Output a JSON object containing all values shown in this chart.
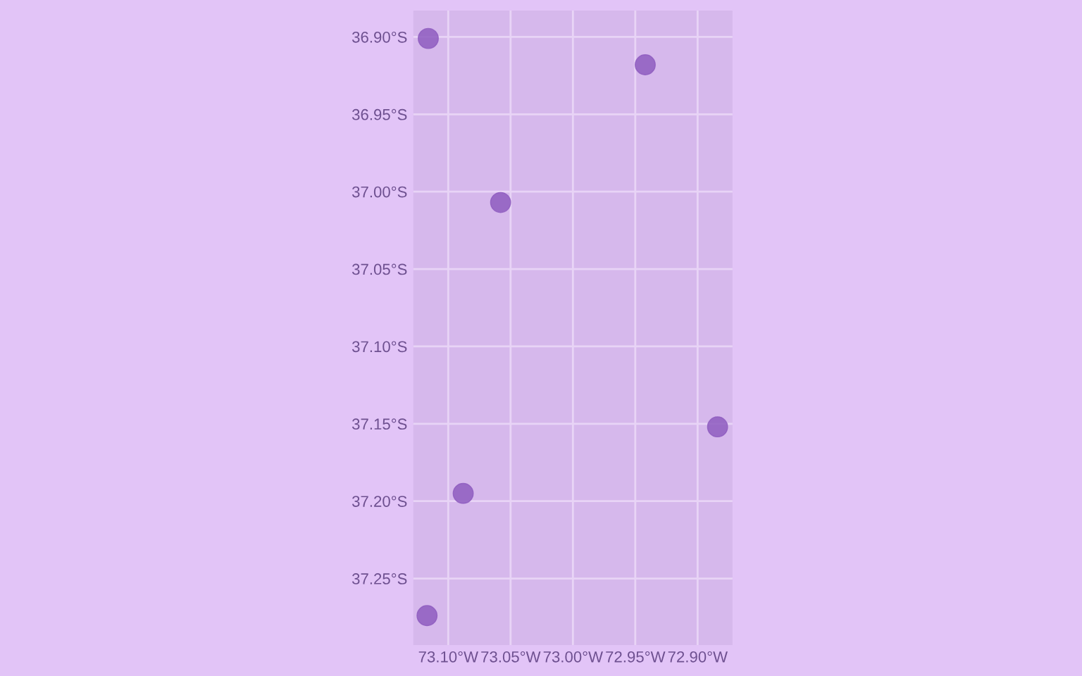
{
  "chart_data": {
    "type": "scatter",
    "x": [
      -73.116,
      -72.942,
      -73.058,
      -72.884,
      -73.088,
      -73.117
    ],
    "values": [
      -36.901,
      -36.918,
      -37.007,
      -37.152,
      -37.195,
      -37.274
    ],
    "color": "#8e5cc0",
    "marker": "circle",
    "grid": true,
    "xlim": [
      -73.128,
      -72.872
    ],
    "ylim": [
      -37.293,
      -36.883
    ],
    "xticks": [
      {
        "value": -73.1,
        "label": "73.10°W"
      },
      {
        "value": -73.05,
        "label": "73.05°W"
      },
      {
        "value": -73.0,
        "label": "73.00°W"
      },
      {
        "value": -72.95,
        "label": "72.95°W"
      },
      {
        "value": -72.9,
        "label": "72.90°W"
      }
    ],
    "yticks": [
      {
        "value": -36.9,
        "label": "36.90°S"
      },
      {
        "value": -36.95,
        "label": "36.95°S"
      },
      {
        "value": -37.0,
        "label": "37.00°S"
      },
      {
        "value": -37.05,
        "label": "37.05°S"
      },
      {
        "value": -37.1,
        "label": "37.10°S"
      },
      {
        "value": -37.15,
        "label": "37.15°S"
      },
      {
        "value": -37.2,
        "label": "37.20°S"
      },
      {
        "value": -37.25,
        "label": "37.25°S"
      }
    ]
  }
}
